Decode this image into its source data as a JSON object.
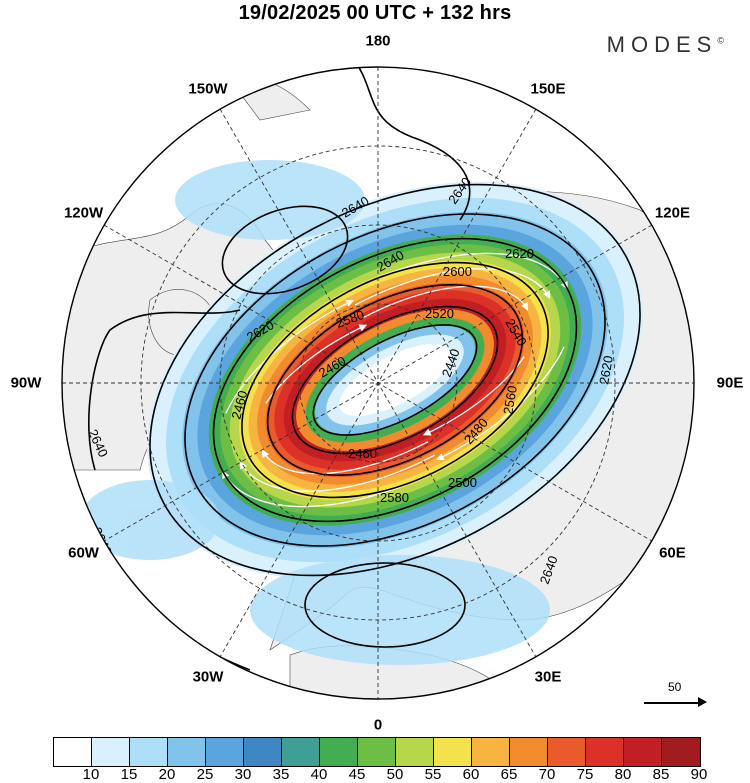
{
  "header": {
    "title": "19/02/2025  00 UTC  + 132 hrs",
    "brand": "MODES",
    "brand_mark": "©"
  },
  "longitude_labels": [
    {
      "text": "180",
      "angle": 180
    },
    {
      "text": "150W",
      "angle": -150
    },
    {
      "text": "150E",
      "angle": 150
    },
    {
      "text": "120W",
      "angle": -120
    },
    {
      "text": "120E",
      "angle": 120
    },
    {
      "text": "90W",
      "angle": -90
    },
    {
      "text": "90E",
      "angle": 90
    },
    {
      "text": "60W",
      "angle": -60
    },
    {
      "text": "60E",
      "angle": 60
    },
    {
      "text": "30W",
      "angle": -30
    },
    {
      "text": "30E",
      "angle": 30
    },
    {
      "text": "0",
      "angle": 0
    }
  ],
  "contour_labels": [
    "2640",
    "2640",
    "2620",
    "2600",
    "2640",
    "2620",
    "2580",
    "2520",
    "2620",
    "2460",
    "2440",
    "2460",
    "2560",
    "2640",
    "2460",
    "2480",
    "2580",
    "2500",
    "2640",
    "2640",
    "2540"
  ],
  "vector_reference": {
    "label": "50"
  },
  "colorbar": {
    "colors": [
      "#ffffff",
      "#d9f1fd",
      "#aedff9",
      "#82c3ec",
      "#5aa5dd",
      "#3f86c4",
      "#3e9f94",
      "#43ad52",
      "#6cbe45",
      "#b6d64b",
      "#f4e24c",
      "#f7b440",
      "#f28b2e",
      "#ea5a2c",
      "#db3126",
      "#c21f24",
      "#a11b1f"
    ],
    "ticks": [
      "10",
      "15",
      "20",
      "25",
      "30",
      "35",
      "40",
      "45",
      "50",
      "55",
      "60",
      "65",
      "70",
      "75",
      "80",
      "85",
      "90"
    ]
  }
}
